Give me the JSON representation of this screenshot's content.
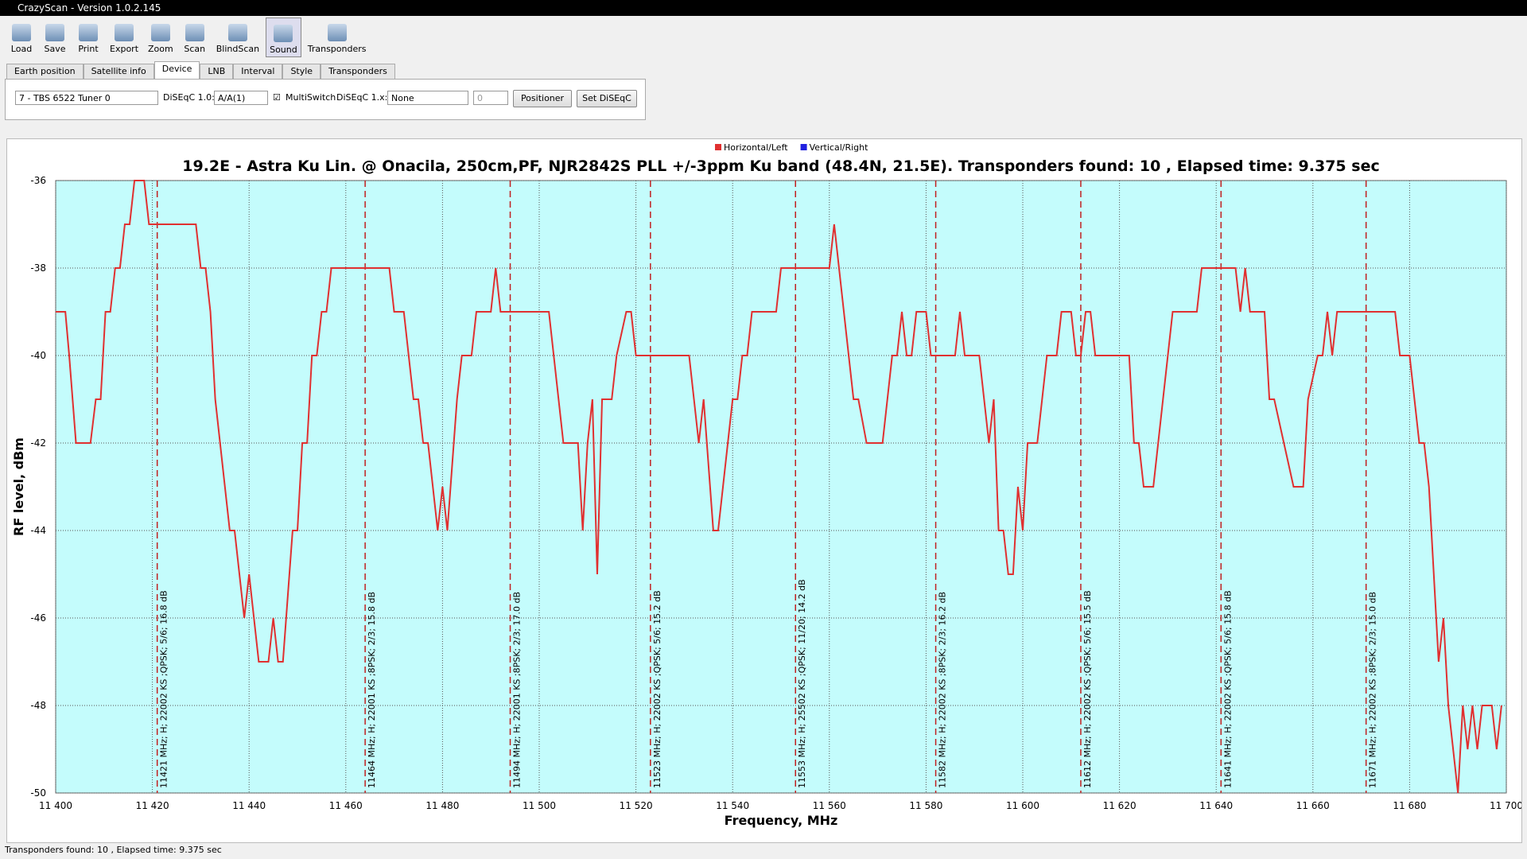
{
  "window": {
    "title": "CrazyScan - Version 1.0.2.145"
  },
  "toolbar": [
    "Load",
    "Save",
    "Print",
    "Export",
    "Zoom",
    "Scan",
    "BlindScan",
    "Sound",
    "Transponders"
  ],
  "tabs": [
    "Earth position",
    "Satellite info",
    "Device",
    "LNB",
    "Interval",
    "Style",
    "Transponders"
  ],
  "device": {
    "tuner": "7 - TBS 6522 Tuner 0",
    "diseqc10_label": "DiSEqC 1.0:",
    "diseqc10": "A/A(1)",
    "multiswitch": "MultiSwitch",
    "diseqc1x_label": "DiSEqC 1.x:",
    "diseqc1x": "None",
    "spin": "0",
    "positioner": "Positioner",
    "set_diseqc": "Set DiSEqC"
  },
  "chart_data": {
    "type": "line",
    "title": "19.2E - Astra  Ku Lin. @ Onacila, 250cm,PF, NJR2842S PLL +/-3ppm Ku band (48.4N, 21.5E). Transponders found: 10 , Elapsed time: 9.375 sec",
    "x_label": "Frequency, MHz",
    "y_label": "RF level, dBm",
    "xlim": [
      11400,
      11700
    ],
    "ylim": [
      -50,
      -36
    ],
    "xticks": [
      {
        "value": 11400,
        "label": "11 400"
      },
      {
        "value": 11420,
        "label": "11 420"
      },
      {
        "value": 11440,
        "label": "11 440"
      },
      {
        "value": 11460,
        "label": "11 460"
      },
      {
        "value": 11480,
        "label": "11 480"
      },
      {
        "value": 11500,
        "label": "11 500"
      },
      {
        "value": 11520,
        "label": "11 520"
      },
      {
        "value": 11540,
        "label": "11 540"
      },
      {
        "value": 11560,
        "label": "11 560"
      },
      {
        "value": 11580,
        "label": "11 580"
      },
      {
        "value": 11600,
        "label": "11 600"
      },
      {
        "value": 11620,
        "label": "11 620"
      },
      {
        "value": 11640,
        "label": "11 640"
      },
      {
        "value": 11660,
        "label": "11 660"
      },
      {
        "value": 11680,
        "label": "11 680"
      },
      {
        "value": 11700,
        "label": "11 700"
      }
    ],
    "yticks": [
      -36,
      -38,
      -40,
      -42,
      -44,
      -46,
      -48,
      -50
    ],
    "grid": true,
    "background": "#c4fcfc",
    "series": [
      {
        "name": "Horizontal/Left",
        "color": "#e03030",
        "x": [
          11400,
          11402,
          11402.8,
          11404.2,
          11407.2,
          11408.3,
          11409.3,
          11410.3,
          11411.3,
          11412.3,
          11413.3,
          11414.3,
          11415.3,
          11416.3,
          11418.3,
          11419.3,
          11429,
          11430,
          11431,
          11432,
          11433,
          11436,
          11437,
          11439,
          11440,
          11442,
          11444,
          11445,
          11446,
          11447,
          11449,
          11450,
          11451,
          11452,
          11453,
          11454,
          11455,
          11456,
          11457,
          11469,
          11470,
          11472,
          11473,
          11474,
          11475,
          11476,
          11477,
          11479,
          11480,
          11481,
          11483,
          11484,
          11486,
          11487,
          11490,
          11491,
          11492,
          11502,
          11503,
          11504,
          11505,
          11508,
          11509,
          11510,
          11511,
          11512,
          11513,
          11515,
          11516,
          11518,
          11519,
          11520,
          11531,
          11532,
          11533,
          11534,
          11536,
          11537,
          11538,
          11539,
          11540,
          11541,
          11542,
          11543,
          11544,
          11549,
          11550,
          11560,
          11561,
          11562,
          11563,
          11564,
          11565,
          11566,
          11567.7,
          11571,
          11572,
          11573,
          11574,
          11575,
          11576,
          11577,
          11578,
          11580,
          11581,
          11586,
          11587,
          11588,
          11591,
          11593,
          11594,
          11595,
          11596,
          11597,
          11598,
          11599,
          11600,
          11601,
          11603,
          11605,
          11607,
          11608,
          11610,
          11611,
          11612,
          11613,
          11614,
          11615,
          11622,
          11623,
          11624,
          11625,
          11627,
          11628,
          11629,
          11630,
          11631,
          11636,
          11637,
          11644,
          11645,
          11646,
          11647,
          11650,
          11651,
          11652,
          11654,
          11656,
          11658,
          11659,
          11661,
          11662,
          11663,
          11664,
          11665,
          11677,
          11678,
          11680,
          11682,
          11683,
          11684,
          11686,
          11687,
          11688,
          11690,
          11691,
          11692,
          11693,
          11694,
          11695,
          11697,
          11698,
          11699
        ],
        "values": [
          -39,
          -39,
          -40,
          -42,
          -42,
          -41,
          -41,
          -39,
          -39,
          -38,
          -38,
          -37,
          -37,
          -36,
          -36,
          -37,
          -37,
          -38,
          -38,
          -39,
          -41,
          -44,
          -44,
          -46,
          -45,
          -47,
          -47,
          -46,
          -47,
          -47,
          -44,
          -44,
          -42,
          -42,
          -40,
          -40,
          -39,
          -39,
          -38,
          -38,
          -39,
          -39,
          -40,
          -41,
          -41,
          -42,
          -42,
          -44,
          -43,
          -44,
          -41,
          -40,
          -40,
          -39,
          -39,
          -38,
          -39,
          -39,
          -40,
          -41,
          -42,
          -42,
          -44,
          -42,
          -41,
          -45,
          -41,
          -41,
          -40,
          -39,
          -39,
          -40,
          -40,
          -41,
          -42,
          -41,
          -44,
          -44,
          -43,
          -42,
          -41,
          -41,
          -40,
          -40,
          -39,
          -39,
          -38,
          -38,
          -37,
          -38,
          -39,
          -40,
          -41,
          -41,
          -42,
          -42,
          -41,
          -40,
          -40,
          -39,
          -40,
          -40,
          -39,
          -39,
          -40,
          -40,
          -39,
          -40,
          -40,
          -42,
          -41,
          -44,
          -44,
          -45,
          -45,
          -43,
          -44,
          -42,
          -42,
          -40,
          -40,
          -39,
          -39,
          -40,
          -40,
          -39,
          -39,
          -40,
          -40,
          -42,
          -42,
          -43,
          -43,
          -42,
          -41,
          -40,
          -39,
          -39,
          -38,
          -38,
          -39,
          -38,
          -39,
          -39,
          -41,
          -41,
          -42,
          -43,
          -43,
          -41,
          -40,
          -40,
          -39,
          -40,
          -39,
          -39,
          -40,
          -40,
          -42,
          -42,
          -43,
          -47,
          -46,
          -48,
          -50,
          -48,
          -49,
          -48,
          -49,
          -48,
          -48,
          -49,
          -48
        ]
      },
      {
        "name": "Vertical/Right",
        "color": "#2020e0",
        "x": [],
        "values": []
      }
    ],
    "markers": [
      {
        "x": 11421,
        "label": "11421 MHz; H; 22002 KS ;QPSK; 5/6; 16.8 dB"
      },
      {
        "x": 11464,
        "label": "11464 MHz; H; 22001 KS ;8PSK; 2/3; 15.8 dB"
      },
      {
        "x": 11494,
        "label": "11494 MHz; H; 22001 KS ;8PSK; 2/3; 17.0 dB"
      },
      {
        "x": 11523,
        "label": "11523 MHz; H; 22002 KS ;QPSK; 5/6; 15.2 dB"
      },
      {
        "x": 11553,
        "label": "11553 MHz; H; 25502 KS ;QPSK; 11/20; 14.2 dB"
      },
      {
        "x": 11582,
        "label": "11582 MHz; H; 22002 KS ;8PSK; 2/3; 16.2 dB"
      },
      {
        "x": 11612,
        "label": "11612 MHz; H; 22002 KS ;QPSK; 5/6; 15.5 dB"
      },
      {
        "x": 11641,
        "label": "11641 MHz; H; 22002 KS ;QPSK; 5/6; 15.8 dB"
      },
      {
        "x": 11671,
        "label": "11671 MHz; H; 22002 KS ;8PSK; 2/3; 15.0 dB"
      }
    ]
  },
  "status": "Transponders found: 10 , Elapsed time: 9.375 sec"
}
